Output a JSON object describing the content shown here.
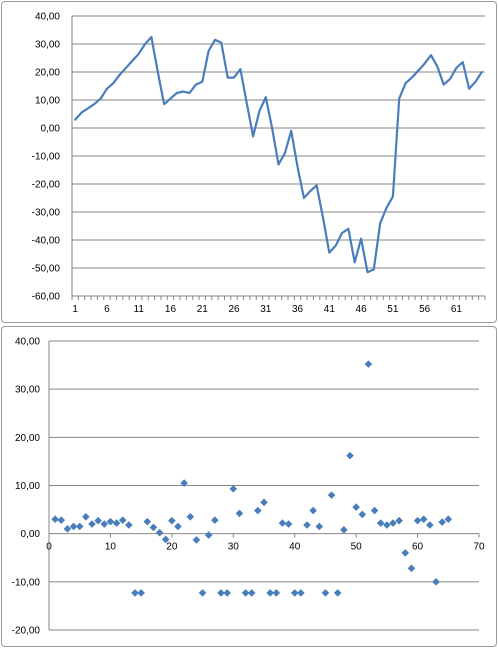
{
  "chart_data": [
    {
      "type": "line",
      "title": "",
      "xlabel": "",
      "ylabel": "",
      "x_tick_labels": [
        "1",
        "6",
        "11",
        "16",
        "21",
        "26",
        "31",
        "36",
        "41",
        "46",
        "51",
        "56",
        "61"
      ],
      "y_ticks": [
        40,
        30,
        20,
        10,
        0,
        -10,
        -20,
        -30,
        -40,
        -50,
        -60
      ],
      "y_tick_labels": [
        "40,00",
        "30,00",
        "20,00",
        "10,00",
        "0,00",
        "-10,00",
        "-20,00",
        "-30,00",
        "-40,00",
        "-50,00",
        "-60,00"
      ],
      "ylim": [
        -60,
        40
      ],
      "x_range": [
        1,
        66
      ],
      "negative_label_color": "#ff0000",
      "series_color": "#4a7ebb",
      "grid": "horizontal",
      "series": [
        {
          "values": [
            3,
            5.5,
            7,
            8.5,
            10.5,
            14,
            16,
            19,
            21.5,
            24,
            26.5,
            30,
            32.5,
            20,
            8.5,
            10.5,
            12.5,
            13,
            12.5,
            15.5,
            16.5,
            27.5,
            31.5,
            30.5,
            18,
            18,
            21,
            9,
            -3,
            6,
            11,
            0,
            -13,
            -9,
            -1,
            -14,
            -25,
            -22.5,
            -20.5,
            -32,
            -44.5,
            -42,
            -37.5,
            -36,
            -48,
            -39.5,
            -51.5,
            -50.5,
            -34,
            -28.5,
            -24.5,
            10.5,
            16,
            18,
            20.5,
            23,
            26,
            22,
            15.5,
            17.5,
            21.5,
            23.5,
            14,
            16.5,
            20
          ]
        }
      ]
    },
    {
      "type": "scatter",
      "title": "",
      "xlabel": "",
      "ylabel": "",
      "x_ticks": [
        0,
        10,
        20,
        30,
        40,
        50,
        60,
        70
      ],
      "x_tick_labels": [
        "0",
        "10",
        "20",
        "30",
        "40",
        "50",
        "60",
        "70"
      ],
      "xlim": [
        0,
        70
      ],
      "y_ticks": [
        40,
        30,
        20,
        10,
        0,
        -10,
        -20
      ],
      "y_tick_labels": [
        "40,00",
        "30,00",
        "20,00",
        "10,00",
        "0,00",
        "-10,00",
        "-20,00"
      ],
      "ylim": [
        -20,
        40
      ],
      "negative_label_color": "#ff0000",
      "marker_color": "#4a7ebb",
      "grid": "horizontal",
      "series": [
        {
          "points": [
            [
              1,
              3
            ],
            [
              2,
              2.8
            ],
            [
              3,
              1
            ],
            [
              4,
              1.5
            ],
            [
              5,
              1.5
            ],
            [
              6,
              3.5
            ],
            [
              7,
              2
            ],
            [
              8,
              2.7
            ],
            [
              9,
              2
            ],
            [
              10,
              2.5
            ],
            [
              11,
              2.2
            ],
            [
              12,
              2.8
            ],
            [
              13,
              1.8
            ],
            [
              14,
              -12.3
            ],
            [
              15,
              -12.3
            ],
            [
              16,
              2.5
            ],
            [
              17,
              1.3
            ],
            [
              18,
              0.2
            ],
            [
              19,
              -1.2
            ],
            [
              20,
              2.7
            ],
            [
              21,
              1.5
            ],
            [
              22,
              10.5
            ],
            [
              23,
              3.5
            ],
            [
              24,
              -1.3
            ],
            [
              25,
              -12.3
            ],
            [
              26,
              -0.3
            ],
            [
              27,
              2.8
            ],
            [
              28,
              -12.3
            ],
            [
              29,
              -12.3
            ],
            [
              30,
              9.3
            ],
            [
              31,
              4.2
            ],
            [
              32,
              -12.3
            ],
            [
              33,
              -12.3
            ],
            [
              34,
              4.8
            ],
            [
              35,
              6.5
            ],
            [
              36,
              -12.3
            ],
            [
              37,
              -12.3
            ],
            [
              38,
              2.2
            ],
            [
              39,
              2
            ],
            [
              40,
              -12.3
            ],
            [
              41,
              -12.3
            ],
            [
              42,
              1.8
            ],
            [
              43,
              4.8
            ],
            [
              44,
              1.5
            ],
            [
              45,
              -12.3
            ],
            [
              46,
              8
            ],
            [
              47,
              -12.3
            ],
            [
              48,
              0.8
            ],
            [
              49,
              16.2
            ],
            [
              50,
              5.5
            ],
            [
              51,
              4
            ],
            [
              52,
              35.2
            ],
            [
              53,
              4.8
            ],
            [
              54,
              2.2
            ],
            [
              55,
              1.8
            ],
            [
              56,
              2.2
            ],
            [
              57,
              2.7
            ],
            [
              58,
              -4
            ],
            [
              59,
              -7.2
            ],
            [
              60,
              2.7
            ],
            [
              61,
              3
            ],
            [
              62,
              1.8
            ],
            [
              63,
              -10
            ],
            [
              64,
              2.4
            ],
            [
              65,
              3
            ]
          ]
        }
      ]
    }
  ]
}
